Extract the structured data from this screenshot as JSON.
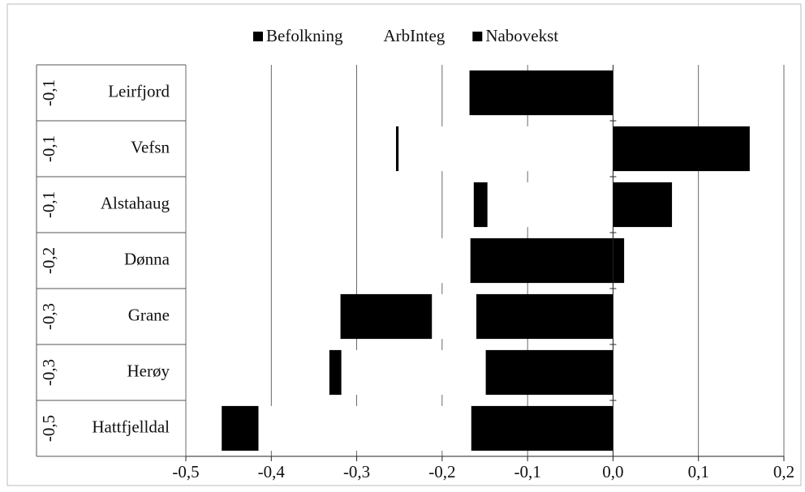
{
  "chart_data": {
    "type": "bar",
    "orientation": "horizontal",
    "stacked": true,
    "categories": [
      "Leirfjord",
      "Vefsn",
      "Alstahaug",
      "Dønna",
      "Grane",
      "Herøy",
      "Hattfjelldal"
    ],
    "totals": [
      {
        "value": -0.1,
        "label": "-0,1"
      },
      {
        "value": -0.1,
        "label": "-0,1"
      },
      {
        "value": -0.1,
        "label": "-0,1"
      },
      {
        "value": -0.2,
        "label": "-0,2"
      },
      {
        "value": -0.3,
        "label": "-0,3"
      },
      {
        "value": -0.3,
        "label": "-0,3"
      },
      {
        "value": -0.5,
        "label": "-0,5"
      }
    ],
    "series": [
      {
        "name": "Befolkning",
        "color": "#000000",
        "values": [
          -0.168,
          0.16,
          0.069,
          -0.167,
          -0.16,
          -0.149,
          -0.166
        ]
      },
      {
        "name": "ArbInteg",
        "color": "#ffffff",
        "values": [
          0.07,
          -0.251,
          -0.147,
          -0.047,
          -0.052,
          -0.169,
          -0.249
        ]
      },
      {
        "name": "Nabovekst",
        "color": "#000000",
        "values": [
          0,
          -0.003,
          -0.016,
          0.013,
          -0.107,
          -0.014,
          -0.043
        ]
      }
    ],
    "xlim": [
      -0.5,
      0.2
    ],
    "xticks": [
      {
        "value": -0.5,
        "label": "-0,5"
      },
      {
        "value": -0.4,
        "label": "-0,4"
      },
      {
        "value": -0.3,
        "label": "-0,3"
      },
      {
        "value": -0.2,
        "label": "-0,2"
      },
      {
        "value": -0.1,
        "label": "-0,1"
      },
      {
        "value": 0,
        "label": "0,0"
      },
      {
        "value": 0.1,
        "label": "0,1"
      },
      {
        "value": 0.2,
        "label": "0,2"
      }
    ],
    "grid": true
  }
}
